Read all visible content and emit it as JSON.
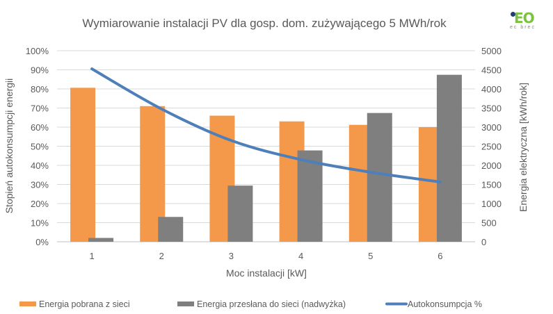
{
  "chart_data": {
    "type": "bar",
    "title": "Wymiarowanie instalacji PV dla gosp. dom. zużywającego 5 MWh/rok",
    "xlabel": "Moc instalacji [kW]",
    "ylabel_left": "Stopień autokonsumpcji energii",
    "ylabel_right": "Energia elektryczna [kWh/rok]",
    "categories": [
      "1",
      "2",
      "3",
      "4",
      "5",
      "6"
    ],
    "ylim_left": [
      0,
      1
    ],
    "yticks_left": [
      "0%",
      "10%",
      "20%",
      "30%",
      "40%",
      "50%",
      "60%",
      "70%",
      "80%",
      "90%",
      "100%"
    ],
    "ylim_right": [
      0,
      5000
    ],
    "yticks_right": [
      "0",
      "500",
      "1000",
      "1500",
      "2000",
      "2500",
      "3000",
      "3500",
      "4000",
      "4500",
      "5000"
    ],
    "grid": true,
    "legend_placement": "bottom",
    "series": [
      {
        "name": "Energia pobrana z sieci",
        "type": "bar",
        "axis": "right",
        "color": "#f4994a",
        "values": [
          4030,
          3550,
          3300,
          3150,
          3060,
          3000
        ]
      },
      {
        "name": "Energia przesłana do sieci (nadwyżka)",
        "type": "bar",
        "axis": "right",
        "color": "#7f7f7f",
        "values": [
          100,
          650,
          1470,
          2390,
          3370,
          4370
        ]
      },
      {
        "name": "Autokonsumpcja %",
        "type": "line",
        "axis": "left",
        "color": "#4f7fb8",
        "values": [
          0.905,
          0.695,
          0.53,
          0.43,
          0.364,
          0.313
        ]
      }
    ]
  },
  "logo": {
    "main": "iEO",
    "sub": "ec brec"
  }
}
